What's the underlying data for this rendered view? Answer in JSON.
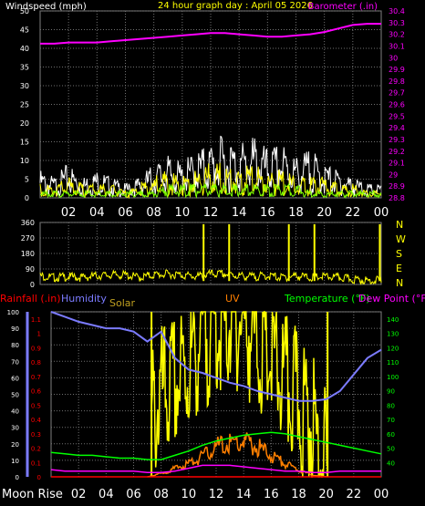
{
  "chart_data": [
    {
      "type": "line",
      "title": "24 hour graph day : April 05 2026",
      "left_axis_label": "Windspeed (mph)",
      "right_axis_label": "Barometer (.in)",
      "left_ticks": [
        "0",
        "5",
        "10",
        "15",
        "20",
        "25",
        "30",
        "35",
        "40",
        "45",
        "50"
      ],
      "right_ticks": [
        "28.8",
        "28.9",
        "29",
        "29.1",
        "29.2",
        "29.3",
        "29.4",
        "29.5",
        "29.6",
        "29.7",
        "29.8",
        "29.9",
        "30",
        "30.1",
        "30.2",
        "30.3",
        "30.4"
      ],
      "ylim_left": [
        0,
        50
      ],
      "ylim_right": [
        28.8,
        30.4
      ],
      "x_ticks": [
        "02",
        "04",
        "06",
        "08",
        "10",
        "12",
        "14",
        "16",
        "18",
        "20",
        "22",
        "00"
      ],
      "grid": true,
      "colors": {
        "barometer": "#ff00ff",
        "gust": "#ffffff",
        "speed": "#ffff00",
        "avg": "#7fff00",
        "axis_left": "#ffffff",
        "axis_right": "#ff00ff"
      },
      "series": [
        {
          "name": "Barometer (.in)",
          "axis": "right",
          "x": [
            0,
            1,
            2,
            3,
            4,
            5,
            6,
            7,
            8,
            9,
            10,
            11,
            12,
            13,
            14,
            15,
            16,
            17,
            18,
            19,
            20,
            21,
            22,
            23,
            24
          ],
          "values": [
            30.12,
            30.12,
            30.13,
            30.13,
            30.13,
            30.14,
            30.15,
            30.16,
            30.17,
            30.18,
            30.19,
            30.2,
            30.21,
            30.21,
            30.2,
            30.19,
            30.18,
            30.18,
            30.19,
            30.2,
            30.22,
            30.25,
            30.28,
            30.29,
            30.29
          ]
        },
        {
          "name": "gust",
          "x": [
            0,
            1,
            2,
            3,
            4,
            5,
            6,
            7,
            8,
            9,
            10,
            11,
            12,
            13,
            14,
            15,
            16,
            17,
            18,
            19,
            20,
            21,
            22,
            23,
            24
          ],
          "values": [
            4,
            3,
            5,
            3,
            4,
            3,
            2,
            3,
            5,
            6,
            5,
            7,
            8,
            9,
            8,
            9,
            7,
            8,
            6,
            7,
            5,
            4,
            3,
            2,
            2
          ]
        },
        {
          "name": "speed",
          "x": [
            0,
            1,
            2,
            3,
            4,
            5,
            6,
            7,
            8,
            9,
            10,
            11,
            12,
            13,
            14,
            15,
            16,
            17,
            18,
            19,
            20,
            21,
            22,
            23,
            24
          ],
          "values": [
            2,
            2,
            3,
            2,
            2,
            2,
            1,
            2,
            3,
            4,
            3,
            4,
            5,
            5,
            4,
            5,
            4,
            4,
            3,
            3,
            3,
            2,
            2,
            1,
            1
          ]
        },
        {
          "name": "average",
          "x": [
            0,
            1,
            2,
            3,
            4,
            5,
            6,
            7,
            8,
            9,
            10,
            11,
            12,
            13,
            14,
            15,
            16,
            17,
            18,
            19,
            20,
            21,
            22,
            23,
            24
          ],
          "values": [
            1,
            1,
            1,
            1,
            1,
            1,
            1,
            1,
            1,
            2,
            2,
            2,
            2,
            2,
            2,
            2,
            2,
            2,
            2,
            1,
            1,
            1,
            1,
            1,
            1
          ]
        }
      ]
    },
    {
      "type": "line",
      "title": "",
      "left_ticks": [
        "0",
        "90",
        "180",
        "270",
        "360"
      ],
      "right_ticks": [
        "N",
        "W",
        "S",
        "E",
        "N"
      ],
      "ylim": [
        0,
        360
      ],
      "x_ticks": [
        "02",
        "04",
        "06",
        "08",
        "10",
        "12",
        "14",
        "16",
        "18",
        "20",
        "22",
        "00"
      ],
      "grid": true,
      "colors": {
        "direction": "#ffff00",
        "ticks_left": "#ffffff",
        "ticks_right": "#ffff00"
      },
      "series": [
        {
          "name": "direction",
          "x": [
            0,
            1,
            2,
            3,
            4,
            5,
            6,
            7,
            8,
            9,
            10,
            11,
            12,
            13,
            14,
            15,
            16,
            17,
            18,
            19,
            20,
            21,
            22,
            23,
            24
          ],
          "values": [
            50,
            40,
            45,
            40,
            50,
            55,
            55,
            40,
            55,
            60,
            55,
            45,
            60,
            60,
            50,
            45,
            50,
            40,
            50,
            40,
            45,
            40,
            30,
            20,
            25
          ]
        }
      ]
    },
    {
      "type": "line",
      "title": "",
      "legend": [
        "Rainfall (.in)",
        "Humidity",
        "Solar",
        "UV",
        "Temperature (°F)",
        "Dew Point (°F)"
      ],
      "rain_ticks": [
        "0",
        "0.1",
        "0.2",
        "0.3",
        "0.4",
        "0.5",
        "0.6",
        "0.7",
        "0.8",
        "0.9",
        "1",
        "1.1"
      ],
      "humidity_ticks": [
        "0",
        "10",
        "20",
        "30",
        "40",
        "50",
        "60",
        "70",
        "80",
        "90",
        "100"
      ],
      "temp_ticks": [
        "40",
        "50",
        "60",
        "70",
        "80",
        "90",
        "100",
        "110",
        "120",
        "130",
        "140"
      ],
      "ylim_humidity": [
        0,
        100
      ],
      "ylim_temp": [
        30,
        145
      ],
      "ylim_rain": [
        0,
        1.15
      ],
      "x_ticks": [
        "02",
        "04",
        "06",
        "08",
        "10",
        "12",
        "14",
        "16",
        "18",
        "20",
        "22",
        "00"
      ],
      "x_prefix_label": "Moon Rise",
      "grid": true,
      "markers_hours": [
        7.3,
        20.1
      ],
      "colors": {
        "rain": "#ff0000",
        "humidity": "#7b7bff",
        "solar": "#ffff00",
        "uv": "#ff7f00",
        "temperature": "#00ff00",
        "dewpoint": "#ff00ff",
        "solar_label": "#c0a020"
      },
      "series": [
        {
          "name": "Humidity",
          "x": [
            0,
            1,
            2,
            3,
            4,
            5,
            6,
            7,
            8,
            9,
            10,
            11,
            12,
            13,
            14,
            15,
            16,
            17,
            18,
            19,
            20,
            21,
            22,
            23,
            24
          ],
          "values": [
            100,
            97,
            94,
            92,
            90,
            90,
            88,
            82,
            88,
            72,
            65,
            63,
            60,
            57,
            55,
            52,
            50,
            48,
            46,
            46,
            47,
            52,
            62,
            72,
            77
          ]
        },
        {
          "name": "Temperature (°F)",
          "x": [
            0,
            1,
            2,
            3,
            4,
            5,
            6,
            7,
            8,
            9,
            10,
            11,
            12,
            13,
            14,
            15,
            16,
            17,
            18,
            19,
            20,
            21,
            22,
            23,
            24
          ],
          "values": [
            47,
            46,
            45,
            45,
            44,
            43,
            43,
            42,
            42,
            45,
            48,
            52,
            55,
            57,
            59,
            60,
            61,
            60,
            58,
            56,
            54,
            52,
            50,
            48,
            46
          ]
        },
        {
          "name": "Dew Point (°F)",
          "x": [
            0,
            1,
            2,
            3,
            4,
            5,
            6,
            7,
            8,
            9,
            10,
            11,
            12,
            13,
            14,
            15,
            16,
            17,
            18,
            19,
            20,
            21,
            22,
            23,
            24
          ],
          "values": [
            35,
            34,
            34,
            34,
            34,
            34,
            34,
            33,
            33,
            34,
            36,
            38,
            38,
            38,
            37,
            36,
            35,
            34,
            34,
            33,
            33,
            34,
            34,
            34,
            34
          ]
        },
        {
          "name": "UV",
          "x": [
            7,
            8,
            9,
            10,
            11,
            12,
            13,
            14,
            15,
            16,
            17,
            18,
            19,
            20
          ],
          "values": [
            0,
            0.2,
            0.5,
            0.8,
            1.2,
            1.8,
            2.0,
            2.1,
            1.8,
            1.3,
            0.8,
            0.4,
            0.1,
            0
          ]
        },
        {
          "name": "Solar",
          "x": [
            7.3,
            8,
            9,
            10,
            11,
            12,
            13,
            14,
            15,
            16,
            17,
            18,
            19,
            20.1
          ],
          "values": [
            35,
            48,
            55,
            65,
            85,
            90,
            95,
            95,
            80,
            70,
            55,
            45,
            30,
            5
          ]
        },
        {
          "name": "Rainfall (.in)",
          "x": [
            0,
            24
          ],
          "values": [
            0,
            0
          ]
        }
      ]
    }
  ]
}
